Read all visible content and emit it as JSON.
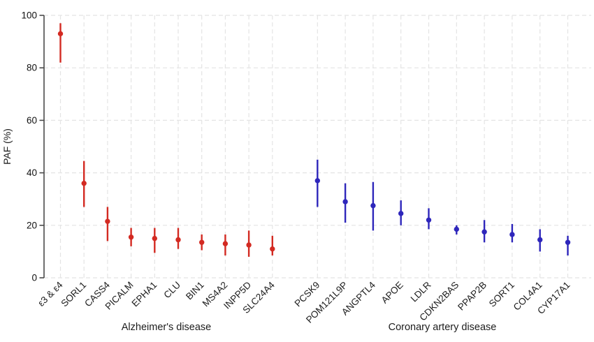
{
  "chart_data": {
    "type": "scatter",
    "subtype": "point-range (point estimates with confidence interval bars)",
    "title": "",
    "xlabel": "",
    "ylabel": "PAF (%)",
    "ylim": [
      0,
      100
    ],
    "yticks": [
      0,
      20,
      40,
      60,
      80,
      100
    ],
    "grid": "light gray dashed gridlines: horizontal at every y tick, vertical at every gene position",
    "legend": "none",
    "colors": {
      "alzheimers_series": "#d32a22",
      "coronary_series": "#2e26bb",
      "axis_line": "#4a4a4a",
      "grid_line": "#e4e4e4",
      "text": "#1c1c1c",
      "background": "#ffffff"
    },
    "groups": [
      {
        "label": "Alzheimer's disease",
        "color": "#d32a22",
        "points": [
          {
            "gene": "ε3 & ε4",
            "value": 93,
            "lo": 82,
            "hi": 97
          },
          {
            "gene": "SORL1",
            "value": 36,
            "lo": 27,
            "hi": 44.5
          },
          {
            "gene": "CASS4",
            "value": 21.5,
            "lo": 14,
            "hi": 27
          },
          {
            "gene": "PICALM",
            "value": 15.5,
            "lo": 12,
            "hi": 19
          },
          {
            "gene": "EPHA1",
            "value": 15,
            "lo": 9.5,
            "hi": 19
          },
          {
            "gene": "CLU",
            "value": 14.5,
            "lo": 11,
            "hi": 19
          },
          {
            "gene": "BIN1",
            "value": 13.5,
            "lo": 10.5,
            "hi": 16.5
          },
          {
            "gene": "MS4A2",
            "value": 13,
            "lo": 8.5,
            "hi": 16.5
          },
          {
            "gene": "INPP5D",
            "value": 12.5,
            "lo": 8,
            "hi": 18
          },
          {
            "gene": "SLC24A4",
            "value": 11,
            "lo": 8.5,
            "hi": 16
          }
        ]
      },
      {
        "label": "Coronary artery disease",
        "color": "#2e26bb",
        "points": [
          {
            "gene": "PCSK9",
            "value": 37,
            "lo": 27,
            "hi": 45
          },
          {
            "gene": "POM121L9P",
            "value": 29,
            "lo": 21,
            "hi": 36
          },
          {
            "gene": "ANGPTL4",
            "value": 27.5,
            "lo": 18,
            "hi": 36.5
          },
          {
            "gene": "APOE",
            "value": 24.5,
            "lo": 20,
            "hi": 29.5
          },
          {
            "gene": "LDLR",
            "value": 22,
            "lo": 18.5,
            "hi": 26.5
          },
          {
            "gene": "CDKN2BAS",
            "value": 18.5,
            "lo": 16.5,
            "hi": 20
          },
          {
            "gene": "PPAP2B",
            "value": 17.5,
            "lo": 13.5,
            "hi": 22
          },
          {
            "gene": "SORT1",
            "value": 16.5,
            "lo": 13.5,
            "hi": 20.5
          },
          {
            "gene": "COL4A1",
            "value": 14.5,
            "lo": 10,
            "hi": 18.5
          },
          {
            "gene": "CYP17A1",
            "value": 13.5,
            "lo": 8.5,
            "hi": 16
          }
        ]
      }
    ]
  }
}
